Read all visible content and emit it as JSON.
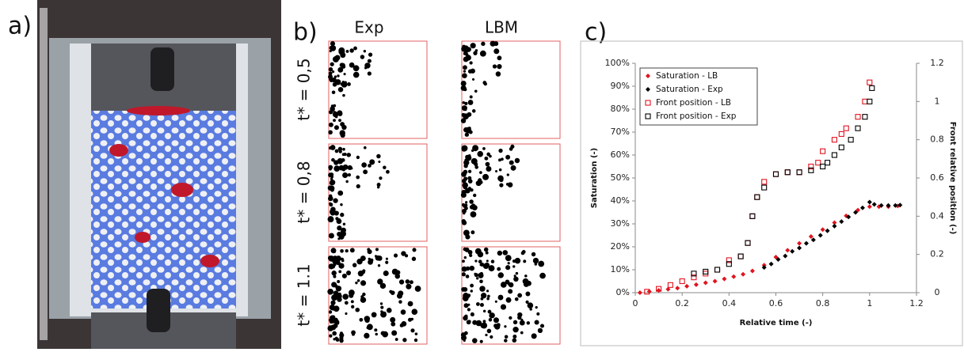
{
  "panels": {
    "a": {
      "label": "a)"
    },
    "b": {
      "label": "b)",
      "columns": [
        "Exp",
        "LBM"
      ],
      "rows": [
        "t* = 0,5",
        "t* = 0,8",
        "t* = 1.1"
      ]
    },
    "c": {
      "label": "c)"
    }
  },
  "chart_data": {
    "type": "scatter",
    "xlabel": "Relative time (-)",
    "ylabel": "Saturation (-)",
    "y2label": "Front relative position (-)",
    "xlim": [
      0,
      1.2
    ],
    "xticks": [
      0,
      0.2,
      0.4,
      0.6,
      0.8,
      1,
      1.2
    ],
    "ylim": [
      0,
      100
    ],
    "yticks": [
      {
        "value": 0,
        "label": "0%"
      },
      {
        "value": 10,
        "label": "10%"
      },
      {
        "value": 20,
        "label": "20%"
      },
      {
        "value": 30,
        "label": "30%"
      },
      {
        "value": 40,
        "label": "40%"
      },
      {
        "value": 50,
        "label": "50%"
      },
      {
        "value": 60,
        "label": "60%"
      },
      {
        "value": 70,
        "label": "70%"
      },
      {
        "value": 80,
        "label": "80%"
      },
      {
        "value": 90,
        "label": "90%"
      },
      {
        "value": 100,
        "label": "100%"
      }
    ],
    "y2lim": [
      0,
      1.2
    ],
    "y2ticks": [
      0,
      0.2,
      0.4,
      0.6,
      0.8,
      1,
      1.2
    ],
    "legend": "top-left",
    "series": [
      {
        "name": "Saturation - LB",
        "color": "#e0141e",
        "marker": "diamond",
        "x": [
          0.02,
          0.06,
          0.1,
          0.14,
          0.18,
          0.22,
          0.26,
          0.3,
          0.34,
          0.38,
          0.42,
          0.46,
          0.5,
          0.55,
          0.6,
          0.65,
          0.7,
          0.75,
          0.8,
          0.85,
          0.9,
          0.95,
          1.0,
          1.04,
          1.08,
          1.12
        ],
        "values": [
          0,
          0.5,
          1,
          1.5,
          2,
          2.8,
          3.5,
          4.3,
          5,
          6,
          7,
          8,
          9.5,
          12,
          15.5,
          18.5,
          21.5,
          24.5,
          27.5,
          30.5,
          33.5,
          36,
          37.5,
          37.5,
          37.5,
          37.8
        ]
      },
      {
        "name": "Saturation - Exp",
        "color": "#000000",
        "marker": "diamond",
        "x": [
          0.55,
          0.58,
          0.61,
          0.64,
          0.67,
          0.7,
          0.73,
          0.76,
          0.79,
          0.82,
          0.85,
          0.88,
          0.91,
          0.94,
          0.97,
          1.0,
          1.02,
          1.05,
          1.08,
          1.11,
          1.13
        ],
        "values": [
          11,
          12.5,
          14.5,
          16,
          18,
          19.5,
          21.5,
          23,
          25,
          27,
          29,
          31,
          33,
          35,
          37,
          39.5,
          38.5,
          38,
          38,
          38,
          38.2
        ]
      },
      {
        "name": "Front position - LB",
        "color": "#e0141e",
        "marker": "square",
        "axis": "y2",
        "x": [
          0.05,
          0.1,
          0.15,
          0.2,
          0.25,
          0.3,
          0.35,
          0.4,
          0.45,
          0.48,
          0.5,
          0.52,
          0.55,
          0.6,
          0.65,
          0.7,
          0.75,
          0.78,
          0.8,
          0.85,
          0.88,
          0.9,
          0.95,
          0.98,
          1.0
        ],
        "values": [
          0.005,
          0.02,
          0.04,
          0.06,
          0.08,
          0.1,
          0.12,
          0.17,
          0.19,
          0.26,
          0.4,
          0.5,
          0.58,
          0.62,
          0.63,
          0.63,
          0.66,
          0.68,
          0.74,
          0.8,
          0.83,
          0.86,
          0.92,
          1.0,
          1.1
        ]
      },
      {
        "name": "Front position - Exp",
        "color": "#000000",
        "marker": "square",
        "axis": "y2",
        "x": [
          0.25,
          0.3,
          0.35,
          0.4,
          0.45,
          0.48,
          0.5,
          0.52,
          0.55,
          0.6,
          0.65,
          0.7,
          0.75,
          0.8,
          0.82,
          0.85,
          0.88,
          0.92,
          0.95,
          0.98,
          1.0,
          1.01
        ],
        "values": [
          0.1,
          0.11,
          0.12,
          0.15,
          0.19,
          0.26,
          0.4,
          0.5,
          0.55,
          0.62,
          0.63,
          0.63,
          0.64,
          0.66,
          0.68,
          0.72,
          0.76,
          0.8,
          0.86,
          0.92,
          1.0,
          1.07
        ]
      }
    ]
  }
}
